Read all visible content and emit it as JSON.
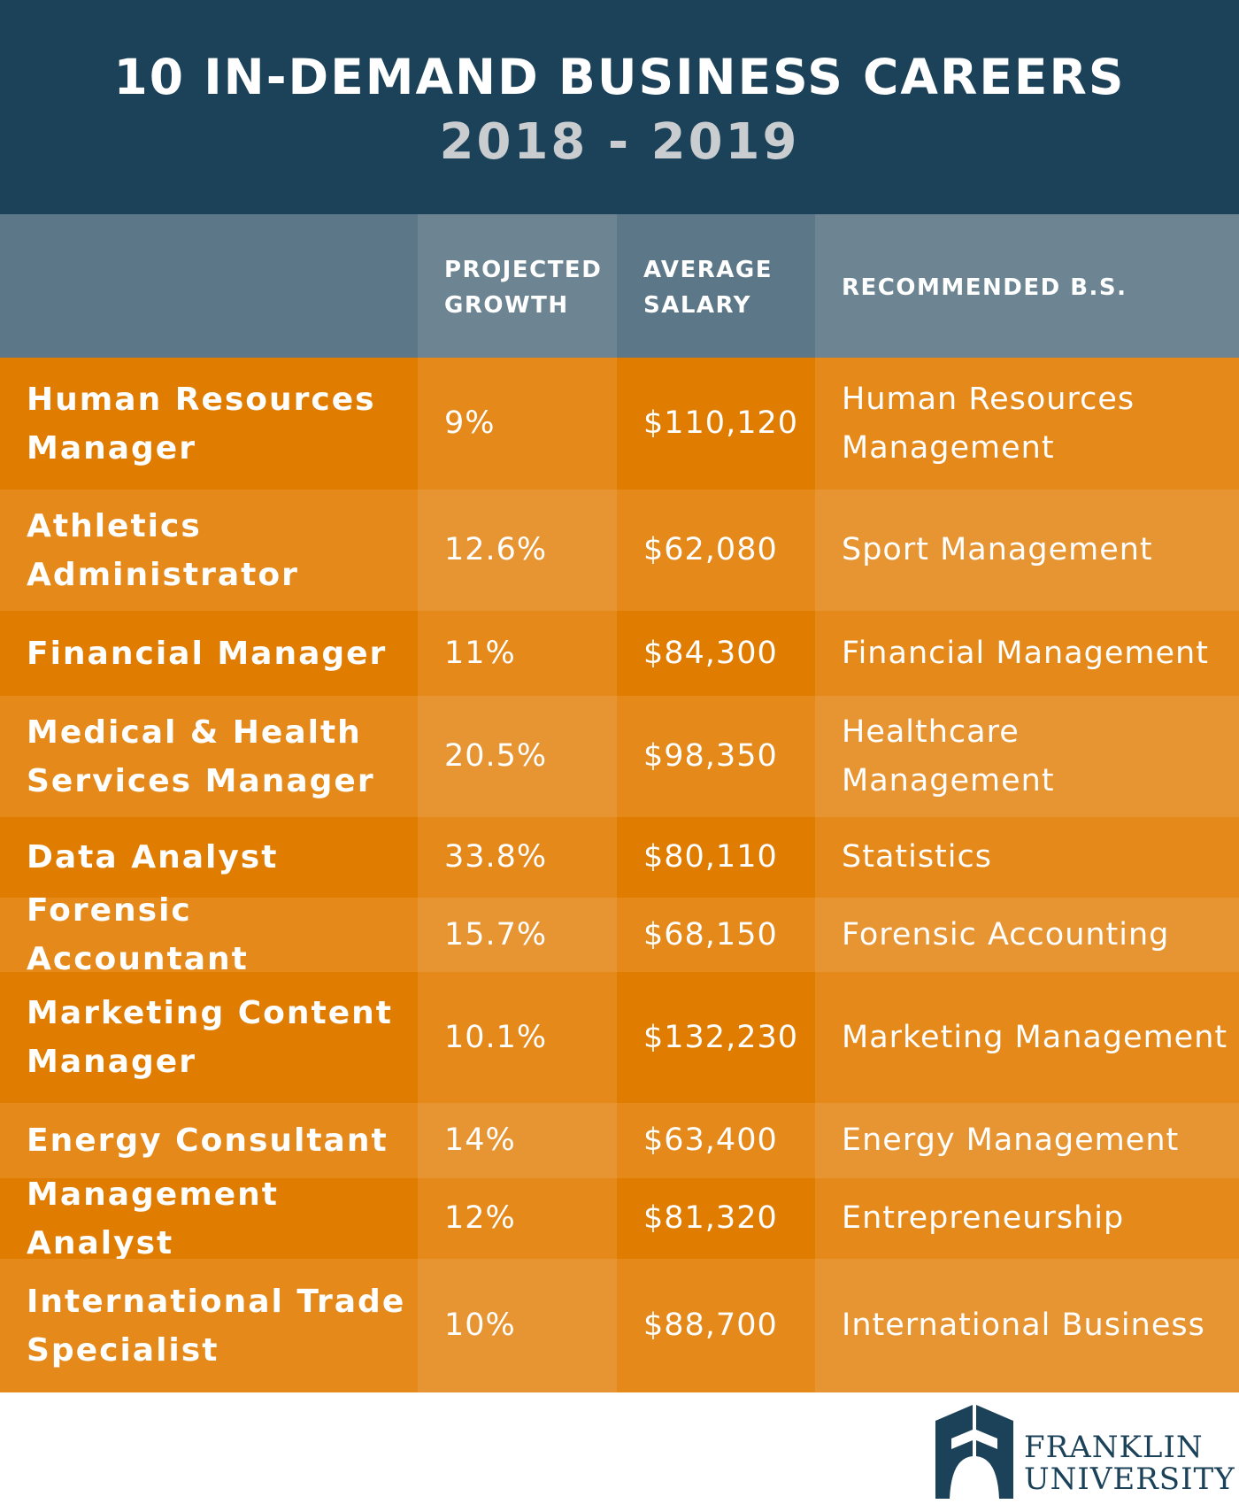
{
  "header": {
    "title": "10 IN-DEMAND BUSINESS CAREERS",
    "subtitle": "2018 - 2019"
  },
  "columns": [
    "",
    "PROJECTED GROWTH",
    "AVERAGE SALARY",
    "RECOMMENDED B.S."
  ],
  "rows": [
    {
      "career": "Human Resources Manager",
      "growth": "9%",
      "salary": "$110,120",
      "degree": "Human Resources Management"
    },
    {
      "career": "Athletics Administrator",
      "growth": "12.6%",
      "salary": "$62,080",
      "degree": "Sport Management"
    },
    {
      "career": "Financial Manager",
      "growth": "11%",
      "salary": "$84,300",
      "degree": "Financial Management"
    },
    {
      "career": "Medical & Health Services Manager",
      "growth": "20.5%",
      "salary": "$98,350",
      "degree": "Healthcare Management"
    },
    {
      "career": "Data Analyst",
      "growth": "33.8%",
      "salary": "$80,110",
      "degree": "Statistics"
    },
    {
      "career": "Forensic Accountant",
      "growth": "15.7%",
      "salary": "$68,150",
      "degree": "Forensic Accounting"
    },
    {
      "career": "Marketing Content Manager",
      "growth": "10.1%",
      "salary": "$132,230",
      "degree": "Marketing Management"
    },
    {
      "career": "Energy Consultant",
      "growth": "14%",
      "salary": "$63,400",
      "degree": "Energy Management"
    },
    {
      "career": "Management Analyst",
      "growth": "12%",
      "salary": "$81,320",
      "degree": "Entrepreneurship"
    },
    {
      "career": "International Trade Specialist",
      "growth": "10%",
      "salary": "$88,700",
      "degree": "International Business"
    }
  ],
  "logo": {
    "line1": "FRANKLIN",
    "line2": "UNIVERSITY"
  },
  "colors": {
    "navy": "#1c4259",
    "orange": "#e07c00",
    "header_gray": "#5c7788"
  }
}
